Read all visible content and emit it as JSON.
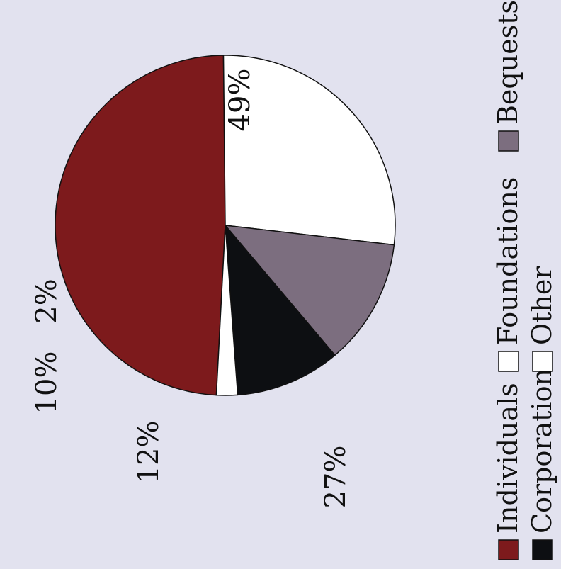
{
  "chart_data": {
    "type": "pie",
    "orientation": "rotated-90-ccw",
    "slices": [
      {
        "label": "Individuals",
        "value": 49,
        "value_label": "49%",
        "color": "#7d1a1c"
      },
      {
        "label": "Foundations",
        "value": 27,
        "value_label": "27%",
        "color": "#ffffff"
      },
      {
        "label": "Bequests",
        "value": 12,
        "value_label": "12%",
        "color": "#7c6e7f"
      },
      {
        "label": "Corporations",
        "value": 10,
        "value_label": "10%",
        "color": "#0d0f12"
      },
      {
        "label": "Other",
        "value": 2,
        "value_label": "2%",
        "color": "#ffffff"
      }
    ],
    "legend": {
      "placement": "bottom",
      "rows": [
        [
          "Individuals",
          "Foundations",
          "Bequests"
        ],
        [
          "Corporations",
          "Other"
        ]
      ]
    },
    "background_color": "#e2e2ef"
  }
}
